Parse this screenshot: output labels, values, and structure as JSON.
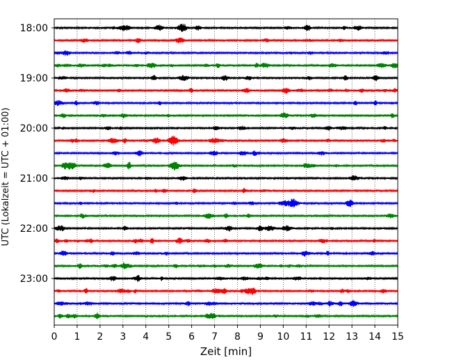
{
  "chart_data": {
    "type": "line",
    "title": "",
    "xlabel": "Zeit  [min]",
    "ylabel": "UTC (Lokalzeit = UTC + 01:00)",
    "xlim": [
      0,
      15
    ],
    "x_ticks": [
      "0",
      "1",
      "2",
      "3",
      "4",
      "5",
      "6",
      "7",
      "8",
      "9",
      "10",
      "11",
      "12",
      "13",
      "14",
      "15"
    ],
    "y_tick_labels": [
      "18:00",
      "19:00",
      "20:00",
      "21:00",
      "22:00",
      "23:00"
    ],
    "grid": "vertical dotted at each minute",
    "trace_interval_minutes": 15,
    "trace_count": 24,
    "trace_colors": [
      "#000000",
      "#ff0000",
      "#0000ff",
      "#008000"
    ],
    "traces": [
      {
        "start": "18:00",
        "color": "#000000"
      },
      {
        "start": "18:15",
        "color": "#ff0000"
      },
      {
        "start": "18:30",
        "color": "#0000ff"
      },
      {
        "start": "18:45",
        "color": "#008000"
      },
      {
        "start": "19:00",
        "color": "#000000"
      },
      {
        "start": "19:15",
        "color": "#ff0000"
      },
      {
        "start": "19:30",
        "color": "#0000ff"
      },
      {
        "start": "19:45",
        "color": "#008000"
      },
      {
        "start": "20:00",
        "color": "#000000"
      },
      {
        "start": "20:15",
        "color": "#ff0000"
      },
      {
        "start": "20:30",
        "color": "#0000ff"
      },
      {
        "start": "20:45",
        "color": "#008000"
      },
      {
        "start": "21:00",
        "color": "#000000"
      },
      {
        "start": "21:15",
        "color": "#ff0000"
      },
      {
        "start": "21:30",
        "color": "#0000ff"
      },
      {
        "start": "21:45",
        "color": "#008000"
      },
      {
        "start": "22:00",
        "color": "#000000"
      },
      {
        "start": "22:15",
        "color": "#ff0000"
      },
      {
        "start": "22:30",
        "color": "#0000ff"
      },
      {
        "start": "22:45",
        "color": "#008000"
      },
      {
        "start": "23:00",
        "color": "#000000"
      },
      {
        "start": "23:15",
        "color": "#ff0000"
      },
      {
        "start": "23:30",
        "color": "#0000ff"
      },
      {
        "start": "23:45",
        "color": "#008000"
      }
    ]
  }
}
